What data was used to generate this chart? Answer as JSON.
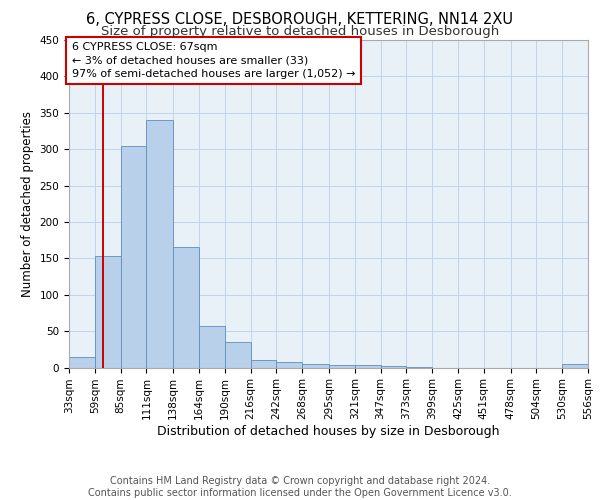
{
  "title1": "6, CYPRESS CLOSE, DESBOROUGH, KETTERING, NN14 2XU",
  "title2": "Size of property relative to detached houses in Desborough",
  "xlabel": "Distribution of detached houses by size in Desborough",
  "ylabel": "Number of detached properties",
  "footer": "Contains HM Land Registry data © Crown copyright and database right 2024.\nContains public sector information licensed under the Open Government Licence v3.0.",
  "bin_edges": [
    33,
    59,
    85,
    111,
    138,
    164,
    190,
    216,
    242,
    268,
    295,
    321,
    347,
    373,
    399,
    425,
    451,
    478,
    504,
    530,
    556
  ],
  "bar_heights": [
    15,
    153,
    305,
    340,
    165,
    57,
    35,
    10,
    7,
    5,
    3,
    3,
    2,
    1,
    0,
    0,
    0,
    0,
    0,
    5
  ],
  "bar_color": "#b8d0ea",
  "bar_edgecolor": "#5a8fc0",
  "grid_color": "#c0d4e8",
  "bg_color": "#e8f0f8",
  "red_line_x": 67,
  "annotation_text": "6 CYPRESS CLOSE: 67sqm\n← 3% of detached houses are smaller (33)\n97% of semi-detached houses are larger (1,052) →",
  "annotation_box_color": "#ffffff",
  "annotation_box_edgecolor": "#cc0000",
  "ylim": [
    0,
    450
  ],
  "yticks": [
    0,
    50,
    100,
    150,
    200,
    250,
    300,
    350,
    400,
    450
  ],
  "title1_fontsize": 10.5,
  "title2_fontsize": 9.5,
  "xlabel_fontsize": 9,
  "ylabel_fontsize": 8.5,
  "tick_fontsize": 7.5,
  "annotation_fontsize": 8,
  "footer_fontsize": 7
}
